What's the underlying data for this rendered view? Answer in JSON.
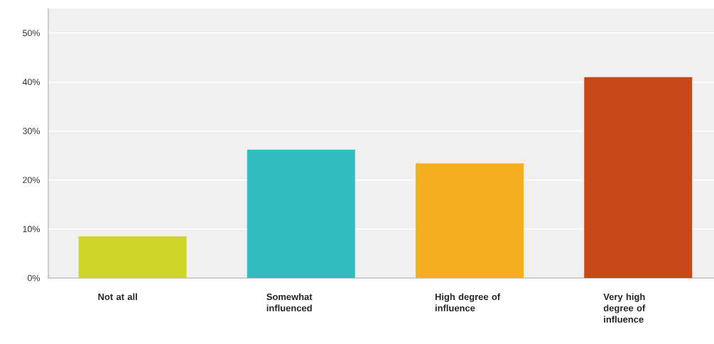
{
  "chart_data": {
    "type": "bar",
    "categories": [
      "Not at all",
      "Somewhat influenced",
      "High degree of influence",
      "Very high degree of influence"
    ],
    "values": [
      8.5,
      26.2,
      23.4,
      41.0
    ],
    "colors": [
      "#cfd628",
      "#33bdbf",
      "#f6af20",
      "#c8471b"
    ],
    "ylim": [
      0,
      55
    ],
    "yticks": [
      {
        "value": 0,
        "label": "0%"
      },
      {
        "value": 10,
        "label": "10%"
      },
      {
        "value": 20,
        "label": "20%"
      },
      {
        "value": 30,
        "label": "30%"
      },
      {
        "value": 40,
        "label": "40%"
      },
      {
        "value": 50,
        "label": "50%"
      }
    ],
    "grid": "y"
  }
}
